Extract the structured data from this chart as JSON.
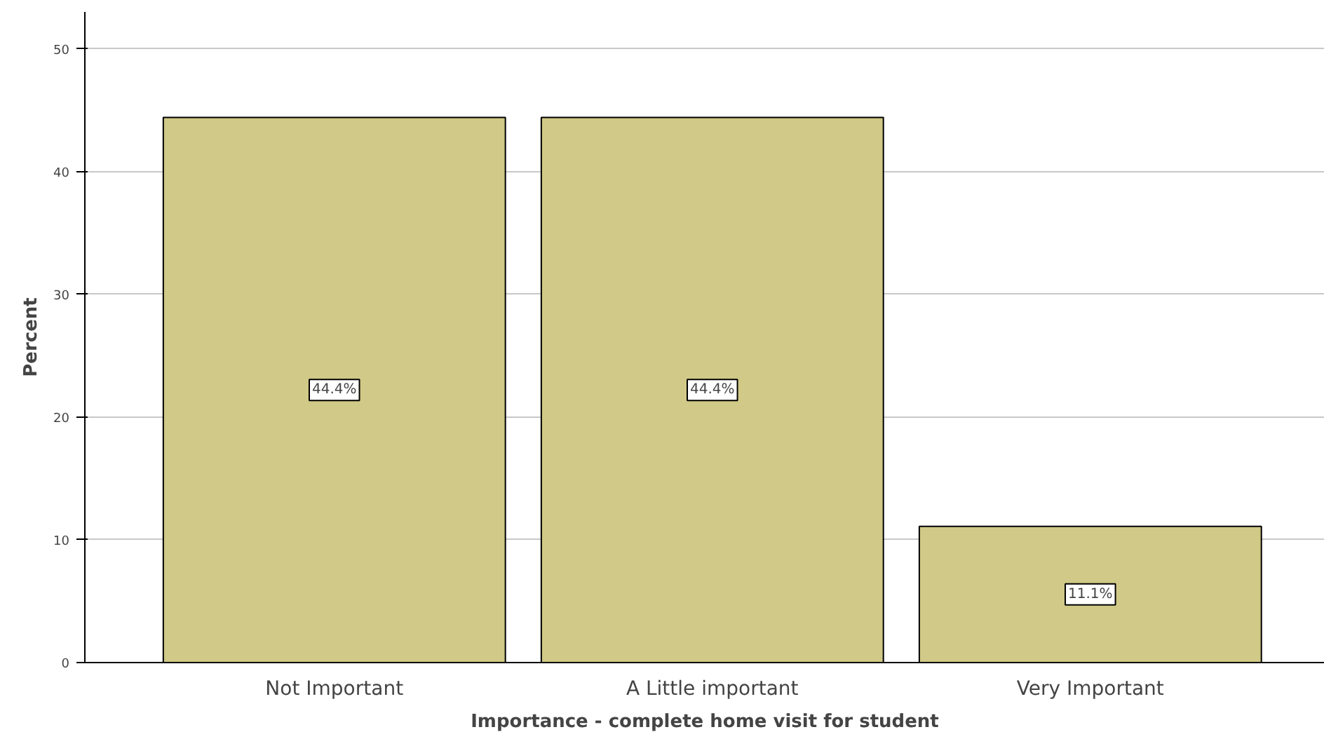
{
  "chart_data": {
    "type": "bar",
    "xlabel": "Importance - complete home visit for student",
    "ylabel": "Percent",
    "categories": [
      "Not Important",
      "A Little important",
      "Very Important"
    ],
    "values": [
      44.4,
      44.4,
      11.1
    ],
    "value_labels": [
      "44.4%",
      "44.4%",
      "11.1%"
    ],
    "color": "#d0c987",
    "ylim": [
      0,
      53
    ],
    "yticks": [
      0,
      10,
      20,
      30,
      40,
      50
    ],
    "grid": "y"
  }
}
